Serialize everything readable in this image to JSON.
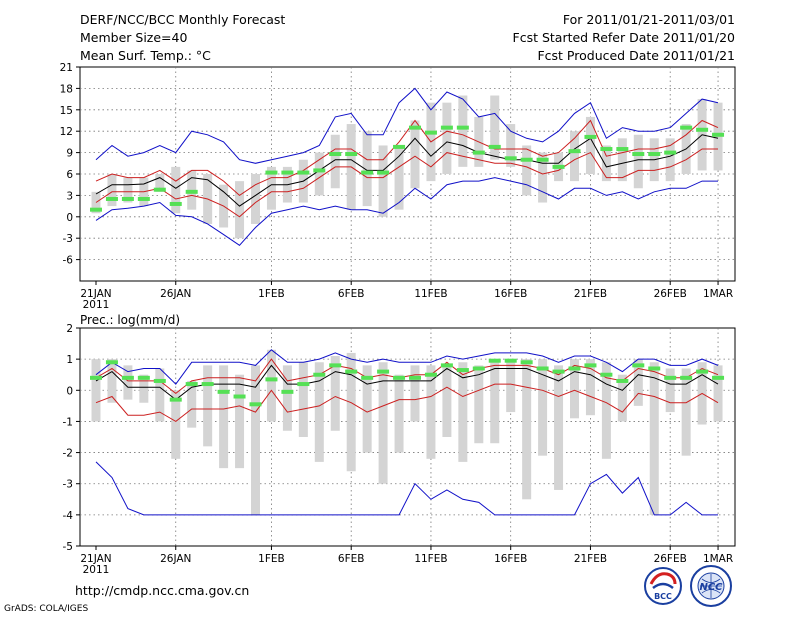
{
  "header": {
    "title": "DERF/NCC/BCC Monthly Forecast",
    "member_size": "Member Size=40",
    "variable": "Mean Surf. Temp.: °C",
    "period": "For 2011/01/21-2011/03/01",
    "fcst_started": "Fcst Started Refer Date 2011/01/20",
    "fcst_produced": "Fcst Produced Date 2011/01/21"
  },
  "footer": {
    "url": "http://cmdp.ncc.cma.gov.cn",
    "grads_credit": "GrADS: COLA/IGES",
    "logo_bcc_text": "BCC",
    "logo_ncc_text": "NCC"
  },
  "colors": {
    "ensemble_bar": "#d4d4d4",
    "observation": "#55e055",
    "mean": "#000000",
    "spread": "#cc2020",
    "extreme": "#1010c8"
  },
  "chart_data": [
    {
      "type": "line",
      "title": "Mean Surf. Temp.: °C",
      "xlabel": "",
      "ylabel": "°C",
      "ylim": [
        -9,
        21
      ],
      "yticks": [
        -6,
        -3,
        0,
        3,
        6,
        9,
        12,
        15,
        18,
        21
      ],
      "grid": true,
      "x_tick_labels": [
        {
          "day": 1,
          "label": "21JAN"
        },
        {
          "day": 6,
          "label": "26JAN"
        },
        {
          "day": 12,
          "label": "1FEB"
        },
        {
          "day": 17,
          "label": "6FEB"
        },
        {
          "day": 22,
          "label": "11FEB"
        },
        {
          "day": 27,
          "label": "16FEB"
        },
        {
          "day": 32,
          "label": "21FEB"
        },
        {
          "day": 37,
          "label": "26FEB"
        },
        {
          "day": 40,
          "label": "1MAR"
        }
      ],
      "year_label": "2011",
      "days": [
        1,
        2,
        3,
        4,
        5,
        6,
        7,
        8,
        9,
        10,
        11,
        12,
        13,
        14,
        15,
        16,
        17,
        18,
        19,
        20,
        21,
        22,
        23,
        24,
        25,
        26,
        27,
        28,
        29,
        30,
        31,
        32,
        33,
        34,
        35,
        36,
        37,
        38,
        39,
        40
      ],
      "bar_low": [
        0.5,
        1.5,
        2.0,
        1.5,
        3.5,
        0.5,
        1.0,
        -1.0,
        -1.5,
        -3.0,
        -1.0,
        1.0,
        2.0,
        2.0,
        3.0,
        4.0,
        1.0,
        1.5,
        0,
        1.0,
        4.0,
        5.0,
        6.0,
        7.0,
        7.0,
        8.0,
        7.0,
        3.0,
        2.0,
        5.0,
        5.0,
        6.0,
        5.0,
        5.0,
        4.0,
        5.0,
        5.0,
        6.0,
        6.5,
        6.5
      ],
      "bar_high": [
        3.5,
        6.0,
        5.5,
        5.5,
        6.0,
        7.0,
        6.5,
        6.0,
        4.5,
        5.0,
        6.0,
        7.0,
        7.0,
        8.0,
        9.0,
        11.5,
        13.0,
        12.0,
        10.0,
        10.0,
        13.5,
        16.0,
        16.0,
        17.0,
        14.0,
        17.0,
        13.0,
        10.0,
        9.0,
        9.0,
        12.0,
        14.0,
        10.0,
        11.0,
        11.5,
        11.0,
        11.0,
        13.0,
        16.5,
        16.0
      ],
      "series": [
        {
          "name": "max",
          "values": [
            -0.5,
            1.0,
            1.2,
            1.5,
            2.0,
            0.2,
            0.0,
            -1.0,
            -2.5,
            -4.0,
            -1.5,
            0.5,
            1.0,
            1.5,
            1.0,
            1.5,
            1.0,
            1.0,
            0.5,
            2.0,
            4.0,
            2.5,
            4.5,
            5.0,
            5.0,
            5.5,
            5.0,
            4.5,
            3.5,
            2.5,
            4.0,
            4.0,
            3.0,
            3.5,
            2.5,
            3.5,
            4.0,
            4.0,
            5.0,
            5.0
          ]
        },
        {
          "name": "max_hi",
          "values": [
            8.0,
            10.0,
            8.5,
            9.0,
            10.0,
            9.0,
            12.0,
            11.5,
            10.5,
            8.0,
            7.5,
            8.0,
            8.5,
            9.0,
            10.0,
            14.0,
            14.5,
            11.5,
            11.5,
            16.0,
            18.0,
            15.0,
            17.5,
            16.5,
            14.0,
            14.5,
            12.0,
            11.0,
            10.5,
            12.0,
            14.5,
            16.0,
            11.0,
            12.5,
            12.0,
            12.0,
            12.5,
            14.5,
            16.5,
            16.0
          ]
        },
        {
          "name": "spread_low",
          "values": [
            2.0,
            3.5,
            3.5,
            3.5,
            4.0,
            2.5,
            3.0,
            2.5,
            1.5,
            0,
            2.0,
            3.5,
            3.5,
            4.0,
            5.5,
            7.0,
            7.0,
            5.5,
            5.5,
            7.0,
            8.5,
            7.0,
            9.0,
            8.5,
            8.0,
            7.5,
            7.5,
            7.0,
            6.0,
            6.5,
            8.0,
            9.0,
            5.5,
            5.5,
            6.5,
            6.5,
            7.0,
            8.0,
            9.5,
            9.5
          ]
        },
        {
          "name": "spread_high",
          "values": [
            5.0,
            6.0,
            5.5,
            5.5,
            6.5,
            5.0,
            6.5,
            6.5,
            5.0,
            3.0,
            4.5,
            5.5,
            5.5,
            6.5,
            8.0,
            9.5,
            9.5,
            8.0,
            8.0,
            10.5,
            13.5,
            10.5,
            12.0,
            11.5,
            10.5,
            9.5,
            9.5,
            9.5,
            8.5,
            9.0,
            11.0,
            13.5,
            8.5,
            9.0,
            9.5,
            9.5,
            10.0,
            11.5,
            13.5,
            12.5
          ]
        },
        {
          "name": "mean",
          "values": [
            3.2,
            4.5,
            4.5,
            4.6,
            5.5,
            4.0,
            5.5,
            5.2,
            3.5,
            1.5,
            3.0,
            4.5,
            4.5,
            5.0,
            6.5,
            8.0,
            8.0,
            6.5,
            6.5,
            8.5,
            11.0,
            8.5,
            10.5,
            10.0,
            9.0,
            8.5,
            8.0,
            8.0,
            7.5,
            7.5,
            9.5,
            11.0,
            7.0,
            7.5,
            8.0,
            8.0,
            8.5,
            9.5,
            11.5,
            11.0
          ]
        },
        {
          "name": "observation",
          "values": [
            1.0,
            2.5,
            2.5,
            2.5,
            3.8,
            1.8,
            3.5,
            null,
            null,
            null,
            null,
            6.2,
            6.2,
            6.2,
            6.5,
            8.8,
            8.8,
            6.2,
            6.2,
            9.8,
            12.5,
            11.8,
            12.5,
            12.5,
            9.0,
            9.8,
            8.2,
            8.0,
            8.0,
            7.0,
            9.2,
            11.2,
            9.5,
            9.5,
            8.8,
            8.8,
            9.0,
            12.5,
            12.2,
            11.5
          ]
        }
      ]
    },
    {
      "type": "line",
      "title": "Prec.: log(mm/d)",
      "xlabel": "",
      "ylabel": "log(mm/d)",
      "ylim": [
        -5,
        2
      ],
      "yticks": [
        -5,
        -4,
        -3,
        -2,
        -1,
        0,
        1,
        2
      ],
      "grid": true,
      "x_tick_labels": [
        {
          "day": 1,
          "label": "21JAN"
        },
        {
          "day": 6,
          "label": "26JAN"
        },
        {
          "day": 12,
          "label": "1FEB"
        },
        {
          "day": 17,
          "label": "6FEB"
        },
        {
          "day": 22,
          "label": "11FEB"
        },
        {
          "day": 27,
          "label": "16FEB"
        },
        {
          "day": 32,
          "label": "21FEB"
        },
        {
          "day": 37,
          "label": "26FEB"
        },
        {
          "day": 40,
          "label": "1MAR"
        }
      ],
      "year_label": "2011",
      "days": [
        1,
        2,
        3,
        4,
        5,
        6,
        7,
        8,
        9,
        10,
        11,
        12,
        13,
        14,
        15,
        16,
        17,
        18,
        19,
        20,
        21,
        22,
        23,
        24,
        25,
        26,
        27,
        28,
        29,
        30,
        31,
        32,
        33,
        34,
        35,
        36,
        37,
        38,
        39,
        40
      ],
      "bar_low": [
        -1.0,
        -0.4,
        -0.3,
        -0.4,
        -1.0,
        -2.2,
        -1.2,
        -1.8,
        -2.5,
        -2.5,
        -4.0,
        -1.0,
        -1.3,
        -1.5,
        -2.3,
        -1.3,
        -2.6,
        -2.0,
        -3.0,
        -2.0,
        -1.0,
        -2.2,
        -1.5,
        -2.3,
        -1.7,
        -1.7,
        -0.7,
        -3.5,
        -2.1,
        -3.2,
        -0.9,
        -0.8,
        -2.2,
        -1.0,
        -0.5,
        -4.0,
        -0.7,
        -2.1,
        -1.1,
        -1.0
      ],
      "bar_high": [
        1.0,
        1.0,
        0.8,
        0.5,
        0.7,
        0.0,
        0.3,
        0.8,
        0.8,
        0.5,
        0.8,
        1.3,
        0.8,
        0.9,
        0.9,
        1.1,
        1.2,
        0.8,
        0.9,
        0.5,
        0.8,
        0.8,
        0.8,
        0.9,
        0.8,
        1.0,
        1.0,
        1.0,
        1.0,
        0.8,
        1.0,
        1.0,
        0.9,
        0.5,
        1.0,
        0.9,
        0.7,
        0.7,
        0.9,
        0.8
      ],
      "series": [
        {
          "name": "max",
          "values": [
            0.5,
            0.9,
            0.6,
            0.7,
            0.7,
            0.2,
            0.9,
            0.9,
            0.9,
            0.9,
            0.8,
            1.3,
            0.9,
            0.9,
            1.0,
            1.2,
            1.0,
            0.9,
            1.0,
            0.9,
            0.9,
            0.9,
            1.1,
            1.0,
            1.1,
            1.2,
            1.2,
            1.2,
            1.1,
            0.9,
            1.1,
            1.1,
            0.9,
            0.6,
            1.0,
            1.0,
            0.8,
            0.8,
            1.0,
            0.8
          ]
        },
        {
          "name": "min",
          "values": [
            -2.3,
            -2.8,
            -3.8,
            -4.0,
            -4.0,
            -4.0,
            -4.0,
            -4.0,
            -4.0,
            -4.0,
            -4.0,
            -4.0,
            -4.0,
            -4.0,
            -4.0,
            -4.0,
            -4.0,
            -4.0,
            -4.0,
            -4.0,
            -3.0,
            -3.5,
            -3.2,
            -3.5,
            -3.6,
            -4.0,
            -4.0,
            -4.0,
            -4.0,
            -4.0,
            -4.0,
            -3.0,
            -2.7,
            -3.3,
            -2.8,
            -4.0,
            -4.0,
            -3.6,
            -4.0,
            -4.0
          ]
        },
        {
          "name": "spread_high",
          "values": [
            0.4,
            0.7,
            0.3,
            0.3,
            0.3,
            -0.1,
            0.3,
            0.4,
            0.4,
            0.4,
            0.3,
            1.0,
            0.3,
            0.4,
            0.5,
            0.8,
            0.7,
            0.4,
            0.5,
            0.4,
            0.5,
            0.5,
            0.9,
            0.5,
            0.7,
            0.8,
            0.8,
            0.8,
            0.7,
            0.5,
            0.8,
            0.7,
            0.4,
            0.3,
            0.7,
            0.6,
            0.4,
            0.4,
            0.7,
            0.5
          ]
        },
        {
          "name": "spread_low",
          "values": [
            -0.4,
            -0.2,
            -0.8,
            -0.8,
            -0.7,
            -1.0,
            -0.6,
            -0.6,
            -0.6,
            -0.5,
            -0.7,
            0.0,
            -0.7,
            -0.6,
            -0.5,
            -0.2,
            -0.4,
            -0.7,
            -0.5,
            -0.3,
            -0.3,
            -0.2,
            0.1,
            -0.2,
            0.0,
            0.2,
            0.2,
            0.1,
            0.0,
            -0.2,
            0.0,
            -0.2,
            -0.4,
            -0.7,
            -0.1,
            -0.2,
            -0.4,
            -0.4,
            -0.1,
            -0.4
          ]
        },
        {
          "name": "mean",
          "values": [
            0.3,
            0.6,
            0.1,
            0.1,
            0.1,
            -0.3,
            0.1,
            0.2,
            0.2,
            0.2,
            0.1,
            0.8,
            0.2,
            0.2,
            0.3,
            0.6,
            0.5,
            0.2,
            0.3,
            0.3,
            0.3,
            0.3,
            0.7,
            0.4,
            0.5,
            0.7,
            0.7,
            0.7,
            0.5,
            0.3,
            0.6,
            0.5,
            0.2,
            0.0,
            0.5,
            0.4,
            0.2,
            0.2,
            0.5,
            0.2
          ]
        },
        {
          "name": "observation",
          "values": [
            0.4,
            0.9,
            0.4,
            0.4,
            0.3,
            -0.3,
            0.2,
            0.2,
            -0.05,
            -0.2,
            -0.45,
            0.35,
            -0.05,
            0.2,
            0.5,
            0.8,
            0.6,
            0.4,
            0.6,
            0.4,
            0.4,
            0.5,
            0.8,
            0.65,
            0.7,
            0.95,
            0.95,
            0.9,
            0.7,
            0.6,
            0.7,
            0.8,
            0.5,
            0.3,
            0.8,
            0.7,
            0.4,
            0.4,
            0.6,
            0.4
          ]
        }
      ]
    }
  ]
}
